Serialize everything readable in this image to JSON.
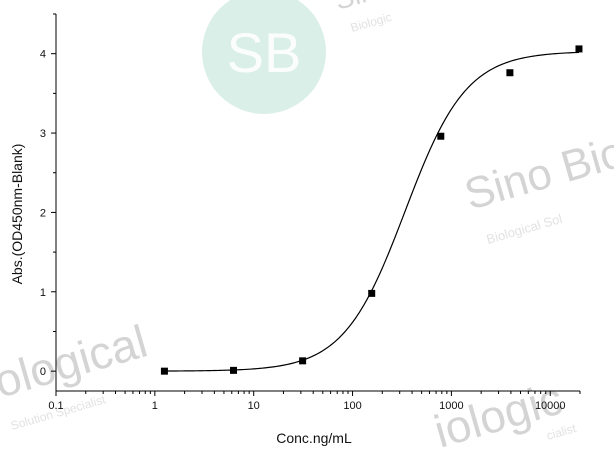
{
  "chart_data": {
    "type": "scatter",
    "title": "",
    "xlabel": "Conc.ng/mL",
    "ylabel": "Abs.(OD450nm-Blank)",
    "x_scale": "log",
    "xlim": [
      0.1,
      20000
    ],
    "ylim": [
      -0.25,
      4.5
    ],
    "x_ticks": [
      0.1,
      1,
      10,
      100,
      1000,
      10000
    ],
    "x_tick_labels": [
      "0.1",
      "1",
      "10",
      "100",
      "1000",
      "10000"
    ],
    "y_ticks": [
      0,
      1,
      2,
      3,
      4
    ],
    "y_tick_labels": [
      "0",
      "1",
      "2",
      "3",
      "4"
    ],
    "grid": false,
    "series": [
      {
        "points": [
          {
            "x": 1.25,
            "y": 0.0
          },
          {
            "x": 6.25,
            "y": 0.01
          },
          {
            "x": 31.25,
            "y": 0.13
          },
          {
            "x": 156.25,
            "y": 0.98
          },
          {
            "x": 781.25,
            "y": 2.96
          },
          {
            "x": 3906.25,
            "y": 3.76
          },
          {
            "x": 19531.25,
            "y": 4.06
          }
        ],
        "marker": "square",
        "color": "#000000"
      }
    ],
    "fit_curve": {
      "model": "4PL",
      "bottom": 0.0,
      "top": 4.03,
      "ec50": 340,
      "hill": 1.4,
      "color": "#000000"
    }
  },
  "watermark": {
    "logo_text": "SB",
    "lines": [
      "Sino Bio",
      "Biological Sol",
      "ological",
      "Solution Specialist",
      "iologic",
      "cialist",
      "Sino",
      "Biologic"
    ]
  }
}
